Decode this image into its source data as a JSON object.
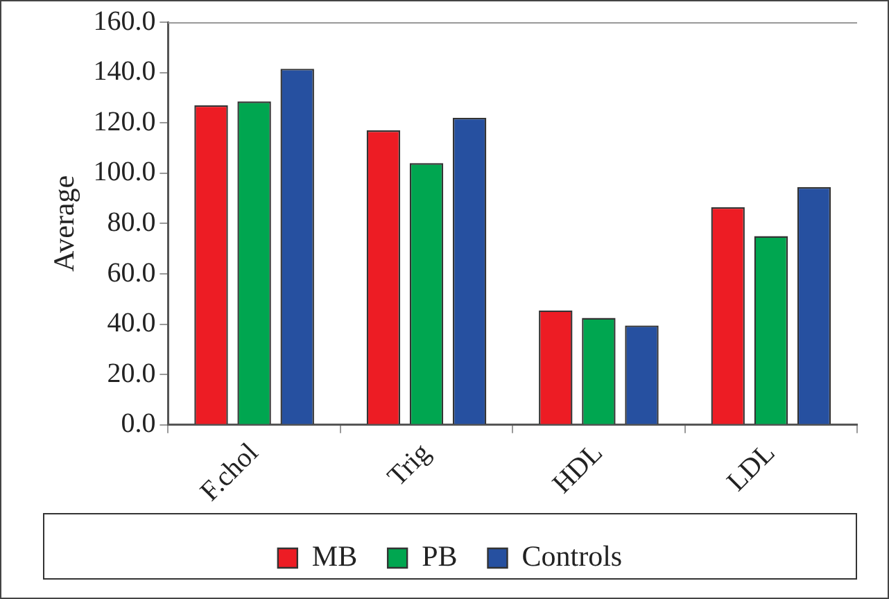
{
  "chart_data": {
    "type": "bar",
    "ylabel": "Average",
    "categories": [
      "F.chol",
      "Trig",
      "HDL",
      "LDL"
    ],
    "series": [
      {
        "name": "MB",
        "color": "#ed1c24",
        "values": [
          127,
          117,
          45.5,
          86.5
        ]
      },
      {
        "name": "PB",
        "color": "#00a650",
        "values": [
          128.5,
          104,
          42.5,
          75
        ]
      },
      {
        "name": "Controls",
        "color": "#2650a0",
        "values": [
          141.5,
          122,
          39.5,
          94.5
        ]
      }
    ],
    "ylim": [
      0,
      160
    ],
    "yticks": [
      {
        "value": 0,
        "label": "0.0"
      },
      {
        "value": 20,
        "label": "20.0"
      },
      {
        "value": 40,
        "label": "40.0"
      },
      {
        "value": 60,
        "label": "60.0"
      },
      {
        "value": 80,
        "label": "80.0"
      },
      {
        "value": 100,
        "label": "100.0"
      },
      {
        "value": 120,
        "label": "120.0"
      },
      {
        "value": 140,
        "label": "140.0"
      },
      {
        "value": 160,
        "label": "160.0"
      }
    ],
    "grid": false,
    "legend": "bottom"
  }
}
